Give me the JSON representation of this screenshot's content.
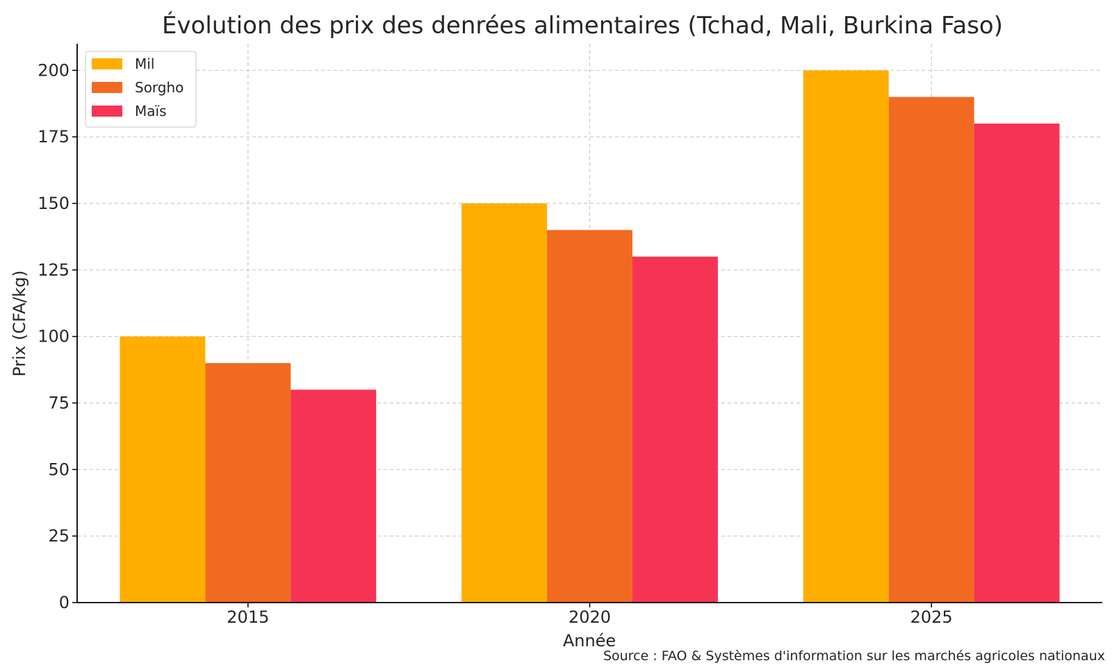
{
  "chart_data": {
    "type": "bar",
    "title": "Évolution des prix des denrées alimentaires (Tchad, Mali, Burkina Faso)",
    "xlabel": "Année",
    "ylabel": "Prix (CFA/kg)",
    "categories": [
      "2015",
      "2020",
      "2025"
    ],
    "series": [
      {
        "name": "Mil",
        "values": [
          100,
          150,
          200
        ],
        "color": "#FFAE00"
      },
      {
        "name": "Sorgho",
        "values": [
          90,
          140,
          190
        ],
        "color": "#F26A21"
      },
      {
        "name": "Maïs",
        "values": [
          80,
          130,
          180
        ],
        "color": "#F63355"
      }
    ],
    "ylim": [
      0,
      210
    ],
    "yticks": [
      0,
      25,
      50,
      75,
      100,
      125,
      150,
      175,
      200
    ],
    "grid": true,
    "legend_position": "top-left",
    "source": "Source : FAO & Systèmes d'information sur les marchés agricoles nationaux"
  }
}
